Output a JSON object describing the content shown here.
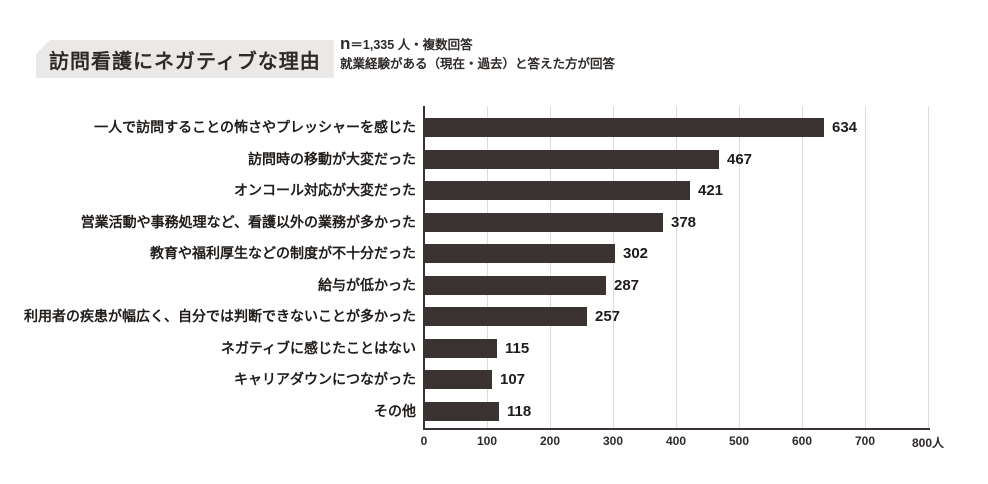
{
  "header": {
    "title": "訪問看護にネガティブな理由",
    "note_n_symbol": "n",
    "note_line1_rest": "＝1,335 人・複数回答",
    "note_line2": "就業経験がある（現在・過去）と答えた方が回答"
  },
  "chart_data": {
    "type": "bar",
    "orientation": "horizontal",
    "title": "訪問看護にネガティブな理由",
    "subtitle": "n＝1,335 人・複数回答　就業経験がある（現在・過去）と答えた方が回答",
    "categories": [
      "一人で訪問することの怖さやプレッシャーを感じた",
      "訪問時の移動が大変だった",
      "オンコール対応が大変だった",
      "営業活動や事務処理など、看護以外の業務が多かった",
      "教育や福利厚生などの制度が不十分だった",
      "給与が低かった",
      "利用者の疾患が幅広く、自分では判断できないことが多かった",
      "ネガティブに感じたことはない",
      "キャリアダウンにつながった",
      "その他"
    ],
    "values": [
      634,
      467,
      421,
      378,
      302,
      287,
      257,
      115,
      107,
      118
    ],
    "xlabel": "",
    "ylabel": "",
    "x_unit": "人",
    "xlim": [
      0,
      800
    ],
    "tick_interval": 100,
    "tick_labels": [
      "0",
      "100",
      "200",
      "300",
      "400",
      "500",
      "600",
      "700",
      "800人"
    ],
    "grid": true,
    "legend": false,
    "bar_color": "#3a3331",
    "grid_color": "#dcdcdc",
    "title_box_color": "#ebe9e7"
  }
}
